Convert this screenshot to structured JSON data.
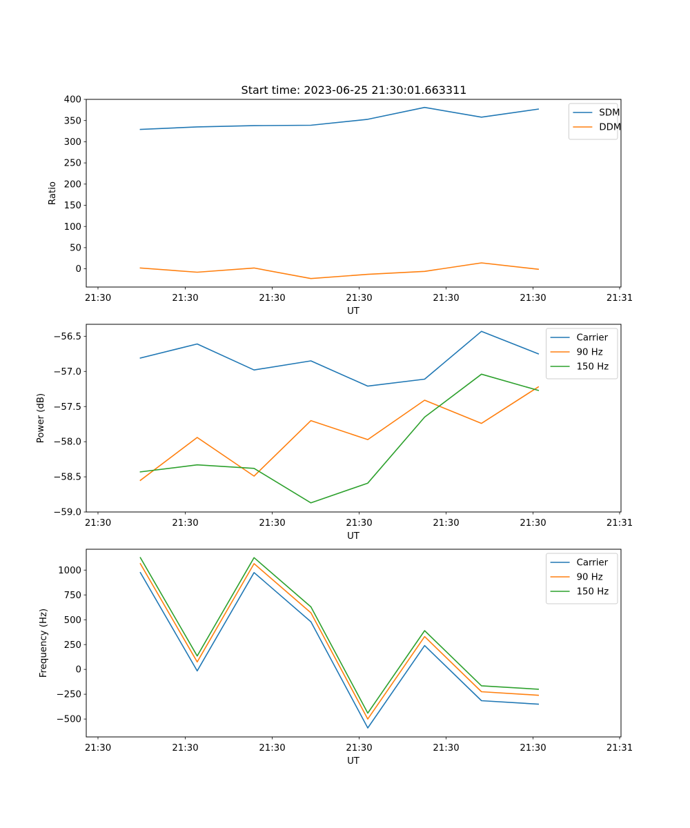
{
  "figure": {
    "title": "Start time: 2023-06-25 21:30:01.663311"
  },
  "chart_data": [
    {
      "type": "line",
      "title": "Start time: 2023-06-25 21:30:01.663311",
      "xlabel": "UT",
      "ylabel": "Ratio",
      "x_tick_labels": [
        "21:30",
        "21:30",
        "21:30",
        "21:30",
        "21:30",
        "21:30",
        "21:30"
      ],
      "x_end_tick_label": "21:31",
      "x": [
        1,
        2,
        3,
        4,
        5,
        6,
        7,
        8
      ],
      "ylim": [
        -43,
        400
      ],
      "yticks": [
        0,
        50,
        100,
        150,
        200,
        250,
        300,
        350,
        400
      ],
      "legend": "top-right",
      "series": [
        {
          "name": "SDM",
          "color": "#1f77b4",
          "values": [
            329,
            335,
            338,
            339,
            353,
            381,
            358,
            377
          ]
        },
        {
          "name": "DDM",
          "color": "#ff7f0e",
          "values": [
            2,
            -8,
            2,
            -23,
            -13,
            -6,
            14,
            -1
          ]
        }
      ]
    },
    {
      "type": "line",
      "xlabel": "UT",
      "ylabel": "Power (dB)",
      "x_tick_labels": [
        "21:30",
        "21:30",
        "21:30",
        "21:30",
        "21:30",
        "21:30",
        "21:30"
      ],
      "x_end_tick_label": "21:31",
      "x": [
        1,
        2,
        3,
        4,
        5,
        6,
        7,
        8
      ],
      "ylim": [
        -59.0,
        -56.33
      ],
      "yticks": [
        -59.0,
        -58.5,
        -58.0,
        -57.5,
        -57.0,
        -56.5
      ],
      "ytick_labels": [
        "−59.0",
        "−58.5",
        "−58.0",
        "−57.5",
        "−57.0",
        "−56.5"
      ],
      "legend": "top-right",
      "series": [
        {
          "name": "Carrier",
          "color": "#1f77b4",
          "values": [
            -56.81,
            -56.61,
            -56.98,
            -56.85,
            -57.21,
            -57.11,
            -56.43,
            -56.75
          ]
        },
        {
          "name": "90 Hz",
          "color": "#ff7f0e",
          "values": [
            -58.55,
            -57.94,
            -58.49,
            -57.7,
            -57.97,
            -57.41,
            -57.74,
            -57.22
          ]
        },
        {
          "name": "150 Hz",
          "color": "#2ca02c",
          "values": [
            -58.43,
            -58.33,
            -58.38,
            -58.87,
            -58.59,
            -57.65,
            -57.04,
            -57.27
          ]
        }
      ]
    },
    {
      "type": "line",
      "xlabel": "UT",
      "ylabel": "Frequency (Hz)",
      "x_tick_labels": [
        "21:30",
        "21:30",
        "21:30",
        "21:30",
        "21:30",
        "21:30",
        "21:30"
      ],
      "x_end_tick_label": "21:31",
      "x": [
        1,
        2,
        3,
        4,
        5,
        6,
        7,
        8
      ],
      "ylim": [
        -680,
        1210
      ],
      "yticks": [
        -500,
        -250,
        0,
        250,
        500,
        750,
        1000
      ],
      "ytick_labels": [
        "−500",
        "−250",
        "0",
        "250",
        "500",
        "750",
        "1000"
      ],
      "legend": "top-right",
      "series": [
        {
          "name": "Carrier",
          "color": "#1f77b4",
          "values": [
            975,
            -15,
            975,
            480,
            -590,
            240,
            -315,
            -350
          ]
        },
        {
          "name": "90 Hz",
          "color": "#ff7f0e",
          "values": [
            1065,
            75,
            1065,
            570,
            -500,
            330,
            -225,
            -260
          ]
        },
        {
          "name": "150 Hz",
          "color": "#2ca02c",
          "values": [
            1125,
            135,
            1125,
            630,
            -440,
            390,
            -165,
            -200
          ]
        }
      ]
    }
  ]
}
